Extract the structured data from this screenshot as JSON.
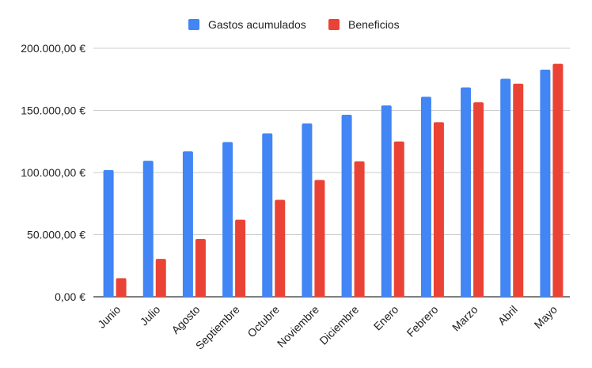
{
  "colors": {
    "series_1": "#4285f4",
    "series_2": "#ea4335",
    "gridline": "#cccccc",
    "baseline": "#333333",
    "text": "#222222"
  },
  "chart_data": {
    "type": "bar",
    "legend_position": "top-center",
    "grid": true,
    "categories": [
      "Junio",
      "Julio",
      "Agosto",
      "Septiembre",
      "Octubre",
      "Noviembre",
      "Diciembre",
      "Enero",
      "Febrero",
      "Marzo",
      "Abril",
      "Mayo"
    ],
    "series": [
      {
        "name": "Gastos acumulados",
        "values": [
          102000,
          109500,
          117000,
          124500,
          131500,
          139500,
          146500,
          154000,
          161000,
          168500,
          175500,
          182800
        ]
      },
      {
        "name": "Beneficios",
        "values": [
          15000,
          30500,
          46500,
          62000,
          78000,
          94000,
          109000,
          125000,
          140500,
          156500,
          171500,
          187500
        ]
      }
    ],
    "ylim": [
      0,
      200000
    ],
    "yticks": [
      0,
      50000,
      100000,
      150000,
      200000
    ],
    "ytick_labels": [
      "0,00 €",
      "50.000,00 €",
      "100.000,00 €",
      "150.000,00 €",
      "200.000,00 €"
    ]
  }
}
